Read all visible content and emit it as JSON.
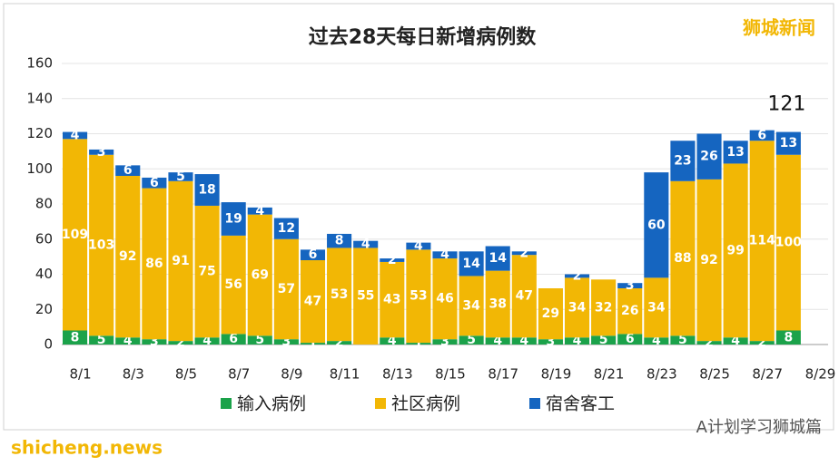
{
  "chart_data": {
    "type": "stacked_bar",
    "title": "过去28天每日新增病例数",
    "categories": [
      "8/1",
      null,
      "8/3",
      null,
      "8/5",
      null,
      "8/7",
      null,
      "8/9",
      null,
      "8/11",
      null,
      "8/13",
      null,
      "8/15",
      null,
      "8/17",
      null,
      "8/19",
      null,
      "8/21",
      null,
      "8/23",
      null,
      "8/25",
      null,
      "8/27",
      null,
      "8/29"
    ],
    "series": [
      {
        "name": "输入病例",
        "color": "#1ba24a",
        "values": [
          8,
          5,
          4,
          3,
          2,
          4,
          6,
          5,
          3,
          1,
          2,
          0,
          4,
          1,
          3,
          5,
          4,
          4,
          3,
          4,
          5,
          6,
          4,
          5,
          2,
          4,
          2,
          8,
          null
        ]
      },
      {
        "name": "社区病例",
        "color": "#f2b705",
        "values": [
          109,
          103,
          92,
          86,
          91,
          75,
          56,
          69,
          57,
          47,
          53,
          55,
          43,
          53,
          46,
          34,
          38,
          47,
          29,
          34,
          32,
          26,
          34,
          88,
          92,
          99,
          114,
          100,
          null
        ]
      },
      {
        "name": "宿舍客工",
        "color": "#1565c0",
        "values": [
          4,
          3,
          6,
          6,
          5,
          18,
          19,
          4,
          12,
          6,
          8,
          4,
          2,
          4,
          4,
          14,
          14,
          2,
          0,
          2,
          0,
          3,
          60,
          23,
          26,
          13,
          6,
          13,
          null
        ]
      }
    ],
    "annotation": "121",
    "ylim": [
      0,
      160
    ],
    "yticks": [
      0,
      20,
      40,
      60,
      80,
      100,
      120,
      140,
      160
    ],
    "grid": true
  },
  "watermarks": {
    "top": "狮城新闻",
    "bottom_right": "A计划学习狮城篇",
    "bottom_left": "shicheng.news"
  }
}
